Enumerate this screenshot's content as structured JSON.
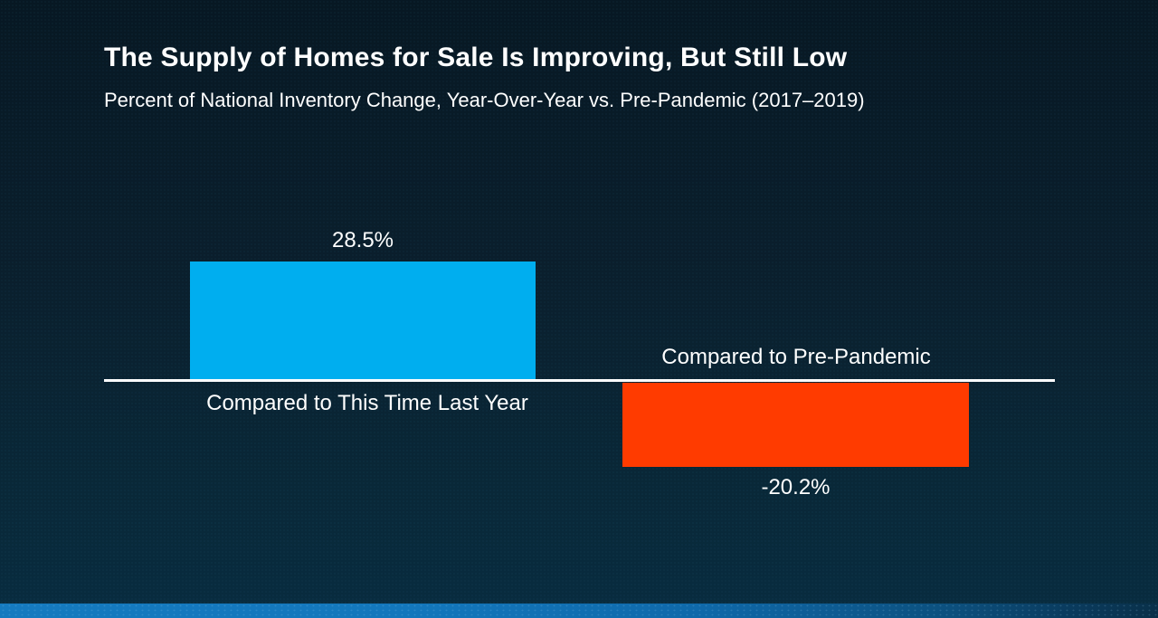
{
  "slide": {
    "title": "The Supply of Homes for Sale Is Improving, But Still Low",
    "subtitle": "Percent of National Inventory Change, Year-Over-Year vs. Pre-Pandemic (2017–2019)"
  },
  "chart_data": {
    "type": "bar",
    "title": "The Supply of Homes for Sale Is Improving, But Still Low",
    "subtitle": "Percent of National Inventory Change, Year-Over-Year vs. Pre-Pandemic (2017–2019)",
    "categories": [
      "Compared to This Time Last Year",
      "Compared to Pre-Pandemic"
    ],
    "values": [
      28.5,
      -20.2
    ],
    "value_labels": [
      "28.5%",
      "-20.2%"
    ],
    "xlabel": "",
    "ylabel": "",
    "baseline": 0,
    "grid": false,
    "legend_position": "none",
    "axis_ticks": "none",
    "colors": {
      "positive_bar": "#00AEEF",
      "negative_bar": "#FF3B00",
      "axis_line": "#FFFFFF",
      "text": "#FFFFFF"
    }
  },
  "colors": {
    "background_top": "#071823",
    "background_bottom": "#082C40",
    "footer_bar_left": "#157ABF",
    "footer_bar_right": "#093049"
  }
}
